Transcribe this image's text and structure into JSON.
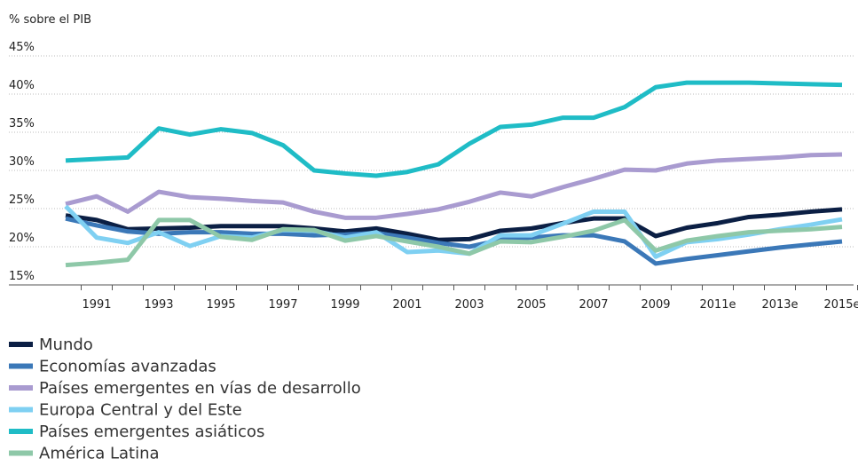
{
  "chart_data": {
    "type": "line",
    "y_label": "% sobre el PIB",
    "categories": [
      null,
      "1991",
      null,
      "1993",
      null,
      "1995",
      null,
      "1997",
      null,
      "1999",
      null,
      "2001",
      null,
      "2003",
      null,
      "2005",
      null,
      "2007",
      null,
      "2009",
      null,
      "2011e",
      null,
      "2013e",
      null,
      "2015e"
    ],
    "series": [
      {
        "name": "Mundo",
        "color": "#0b1f44",
        "values": [
          24.1,
          23.5,
          22.3,
          22.4,
          22.5,
          22.7,
          22.7,
          22.7,
          22.4,
          22.0,
          22.4,
          21.7,
          20.9,
          21.0,
          22.1,
          22.4,
          23.1,
          23.7,
          23.7,
          21.4,
          22.5,
          23.1,
          23.9,
          24.2,
          24.6,
          24.9
        ]
      },
      {
        "name": "Economías avanzadas",
        "color": "#3b78b8",
        "values": [
          23.7,
          22.8,
          22.0,
          21.7,
          21.9,
          21.9,
          21.7,
          21.7,
          21.5,
          21.6,
          21.8,
          21.2,
          20.5,
          20.0,
          20.9,
          21.2,
          21.5,
          21.5,
          20.7,
          17.8,
          18.4,
          18.9,
          19.4,
          19.9,
          20.3,
          20.7
        ]
      },
      {
        "name": "Países emergentes en vías de desarrollo",
        "color": "#a99bd0",
        "values": [
          25.6,
          26.6,
          24.6,
          27.2,
          26.5,
          26.3,
          26.0,
          25.8,
          24.6,
          23.8,
          23.8,
          24.3,
          24.9,
          25.9,
          27.1,
          26.6,
          27.8,
          28.9,
          30.1,
          30.0,
          30.9,
          31.3,
          31.5,
          31.7,
          32.0,
          32.1
        ]
      },
      {
        "name": "Europa Central y del Este",
        "color": "#7fd0f2",
        "values": [
          25.3,
          21.2,
          20.5,
          21.9,
          20.1,
          21.4,
          21.2,
          22.2,
          22.1,
          21.2,
          21.9,
          19.3,
          19.5,
          19.1,
          21.5,
          21.5,
          23.0,
          24.6,
          24.6,
          18.7,
          20.6,
          21.0,
          21.6,
          22.3,
          22.9,
          23.6
        ]
      },
      {
        "name": "Países emergentes asiáticos",
        "color": "#1fbcc6",
        "values": [
          31.3,
          31.5,
          31.7,
          35.5,
          34.7,
          35.4,
          34.9,
          33.3,
          30.0,
          29.6,
          29.3,
          29.8,
          30.8,
          33.5,
          35.7,
          36.0,
          36.9,
          36.9,
          38.3,
          40.9,
          41.5,
          41.5,
          41.5,
          41.4,
          41.3,
          41.2
        ]
      },
      {
        "name": "América Latina",
        "color": "#8ec8a8",
        "values": [
          17.6,
          17.9,
          18.3,
          23.5,
          23.5,
          21.3,
          20.9,
          22.3,
          22.2,
          20.8,
          21.4,
          20.7,
          20.0,
          19.1,
          20.7,
          20.6,
          21.3,
          22.1,
          23.5,
          19.5,
          20.8,
          21.4,
          21.9,
          22.1,
          22.3,
          22.6
        ]
      }
    ],
    "ylim": [
      15,
      45
    ],
    "yticks": [
      {
        "value": 15,
        "label": "15%"
      },
      {
        "value": 20,
        "label": "20%"
      },
      {
        "value": 25,
        "label": "25%"
      },
      {
        "value": 30,
        "label": "30%"
      },
      {
        "value": 35,
        "label": "35%"
      },
      {
        "value": 40,
        "label": "40%"
      },
      {
        "value": 45,
        "label": "45%"
      }
    ],
    "grid": true
  }
}
